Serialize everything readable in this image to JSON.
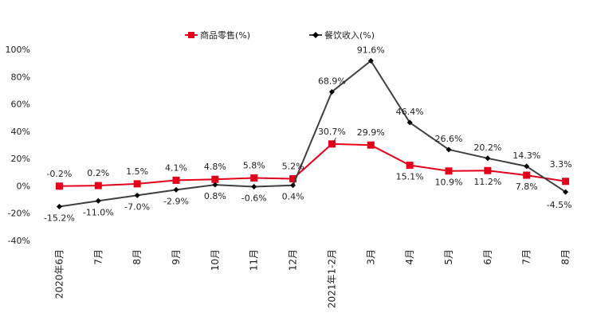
{
  "chart_data": {
    "type": "line",
    "categories": [
      "2020年6月",
      "7月",
      "8月",
      "9月",
      "10月",
      "11月",
      "12月",
      "2021年1-2月",
      "3月",
      "4月",
      "5月",
      "6月",
      "7月",
      "8月"
    ],
    "series": [
      {
        "name": "商品零售(%)",
        "color": "#e3001b",
        "marker": "square",
        "values": [
          -0.2,
          0.2,
          1.5,
          4.1,
          4.8,
          5.8,
          5.2,
          30.7,
          29.9,
          15.1,
          10.9,
          11.2,
          7.8,
          3.3
        ],
        "data_labels": [
          "-0.2%",
          "0.2%",
          "1.5%",
          "4.1%",
          "4.8%",
          "5.8%",
          "5.2%",
          "30.7%",
          "29.9%",
          "15.1%",
          "10.9%",
          "11.2%",
          "7.8%",
          "3.3%"
        ]
      },
      {
        "name": "餐饮收入(%)",
        "color": "#404040",
        "marker": "diamond",
        "values": [
          -15.2,
          -11.0,
          -7.0,
          -2.9,
          0.8,
          -0.6,
          0.4,
          68.9,
          91.6,
          46.4,
          26.6,
          20.2,
          14.3,
          -4.5
        ],
        "data_labels": [
          "-15.2%",
          "-11.0%",
          "-7.0%",
          "-2.9%",
          "0.8%",
          "-0.6%",
          "0.4%",
          "68.9%",
          "91.6%",
          "46.4%",
          "26.6%",
          "20.2%",
          "14.3%",
          "-4.5%"
        ]
      }
    ],
    "ylim": [
      -40,
      100
    ],
    "yticks": [
      -40,
      -20,
      0,
      20,
      40,
      60,
      80,
      100
    ],
    "ytick_labels": [
      "-40%",
      "-20%",
      "0%",
      "20%",
      "40%",
      "60%",
      "80%",
      "100%"
    ],
    "grid": false,
    "legend_position": "top-center"
  }
}
